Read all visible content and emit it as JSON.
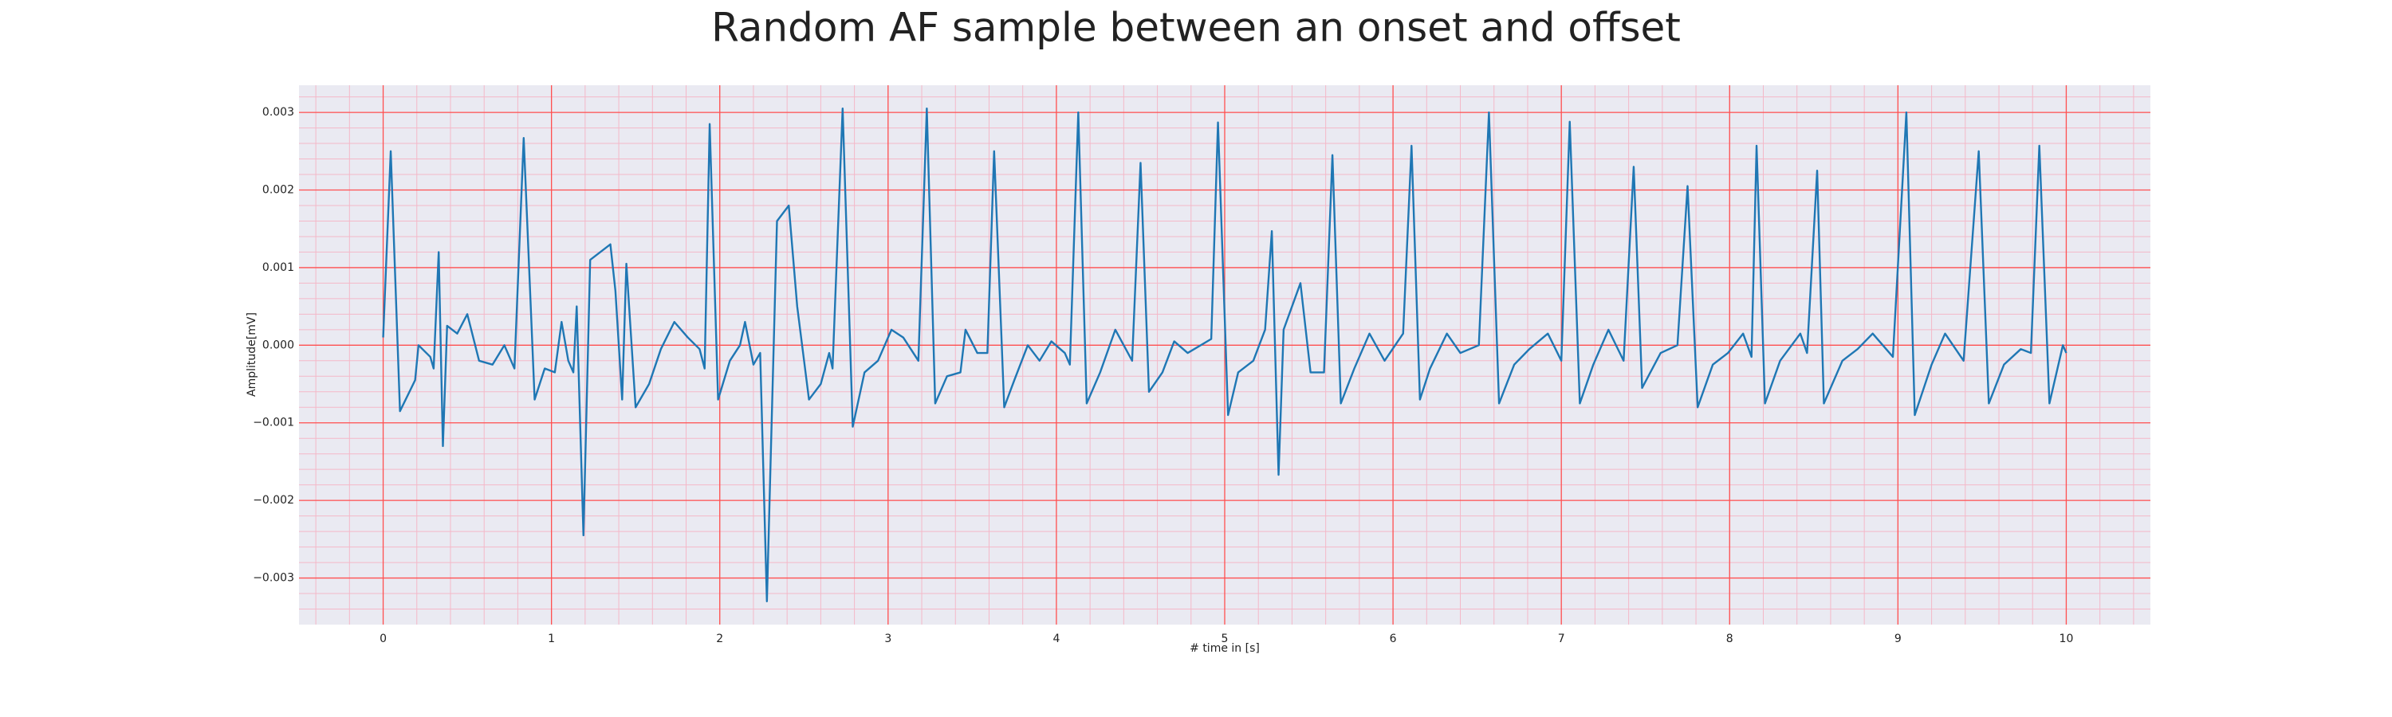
{
  "chart_data": {
    "type": "line",
    "title": "Random AF sample between an onset and offset",
    "x_label": "# time in [s]",
    "y_label": "Amplitude[mV]",
    "xlim": [
      -0.5,
      10.5
    ],
    "ylim": [
      -0.0036,
      0.00335
    ],
    "xticks": [
      0,
      1,
      2,
      3,
      4,
      5,
      6,
      7,
      8,
      9,
      10
    ],
    "yticks": [
      {
        "value": -0.003,
        "label": "−0.003"
      },
      {
        "value": -0.002,
        "label": "−0.002"
      },
      {
        "value": -0.001,
        "label": "−0.001"
      },
      {
        "value": 0,
        "label": "0.000"
      },
      {
        "value": 0.001,
        "label": "0.001"
      },
      {
        "value": 0.002,
        "label": "0.002"
      },
      {
        "value": 0.003,
        "label": "0.003"
      }
    ],
    "grid": true,
    "grid_color": "#ff5050",
    "minor_grid_per_major": 5,
    "minor_grid_color": "#f4b8c8",
    "background": "#eaeaf2",
    "series": [
      {
        "color": "#1f77b4",
        "x": [
          0,
          0.045,
          0.1,
          0.19,
          0.21,
          0.28,
          0.3,
          0.33,
          0.355,
          0.38,
          0.44,
          0.5,
          0.57,
          0.65,
          0.72,
          0.78,
          0.835,
          0.9,
          0.96,
          1.02,
          1.06,
          1.1,
          1.13,
          1.15,
          1.19,
          1.23,
          1.29,
          1.35,
          1.38,
          1.42,
          1.445,
          1.5,
          1.58,
          1.65,
          1.73,
          1.81,
          1.88,
          1.91,
          1.94,
          1.99,
          2.06,
          2.12,
          2.15,
          2.2,
          2.24,
          2.28,
          2.34,
          2.41,
          2.46,
          2.53,
          2.6,
          2.65,
          2.67,
          2.73,
          2.79,
          2.86,
          2.94,
          3.02,
          3.09,
          3.18,
          3.23,
          3.28,
          3.35,
          3.43,
          3.46,
          3.53,
          3.59,
          3.63,
          3.69,
          3.75,
          3.83,
          3.9,
          3.97,
          4.05,
          4.08,
          4.13,
          4.18,
          4.26,
          4.35,
          4.45,
          4.5,
          4.55,
          4.63,
          4.7,
          4.78,
          4.92,
          4.96,
          5.02,
          5.08,
          5.17,
          5.24,
          5.28,
          5.32,
          5.35,
          5.45,
          5.51,
          5.59,
          5.64,
          5.69,
          5.77,
          5.86,
          5.95,
          6.06,
          6.11,
          6.16,
          6.22,
          6.32,
          6.4,
          6.51,
          6.57,
          6.63,
          6.72,
          6.81,
          6.92,
          7.0,
          7.05,
          7.11,
          7.19,
          7.28,
          7.37,
          7.43,
          7.48,
          7.59,
          7.69,
          7.75,
          7.81,
          7.9,
          7.99,
          8.08,
          8.13,
          8.16,
          8.21,
          8.3,
          8.42,
          8.46,
          8.52,
          8.56,
          8.67,
          8.76,
          8.85,
          8.97,
          9.05,
          9.1,
          9.2,
          9.28,
          9.39,
          9.48,
          9.54,
          9.63,
          9.73,
          9.79,
          9.84,
          9.9,
          9.98,
          10.0
        ],
        "values": [
          0.0001,
          0.0025,
          -0.00085,
          -0.00045,
          0,
          -0.00015,
          -0.0003,
          0.0012,
          -0.0013,
          0.00025,
          0.00015,
          0.0004,
          -0.0002,
          -0.00025,
          0,
          -0.0003,
          0.00267,
          -0.0007,
          -0.0003,
          -0.00035,
          0.0003,
          -0.0002,
          -0.00035,
          0.0005,
          -0.00245,
          0.0011,
          0.0012,
          0.0013,
          0.0007,
          -0.0007,
          0.00105,
          -0.0008,
          -0.0005,
          -5e-05,
          0.0003,
          0.0001,
          -5e-05,
          -0.0003,
          0.00285,
          -0.0007,
          -0.0002,
          0,
          0.0003,
          -0.00025,
          -0.0001,
          -0.0033,
          0.0016,
          0.0018,
          0.0005,
          -0.0007,
          -0.0005,
          -0.0001,
          -0.0003,
          0.00305,
          -0.00105,
          -0.00035,
          -0.0002,
          0.0002,
          0.0001,
          -0.0002,
          0.00305,
          -0.00075,
          -0.0004,
          -0.00035,
          0.0002,
          -0.0001,
          -0.0001,
          0.0025,
          -0.0008,
          -0.00045,
          0,
          -0.0002,
          5e-05,
          -0.0001,
          -0.00025,
          0.003,
          -0.00075,
          -0.00035,
          0.0002,
          -0.0002,
          0.00235,
          -0.0006,
          -0.00035,
          5e-05,
          -0.0001,
          8e-05,
          0.00287,
          -0.0009,
          -0.00035,
          -0.0002,
          0.0002,
          0.00147,
          -0.00167,
          0.0002,
          0.0008,
          -0.00035,
          -0.00035,
          0.00245,
          -0.00075,
          -0.0003,
          0.00015,
          -0.0002,
          0.00015,
          0.00257,
          -0.0007,
          -0.0003,
          0.00015,
          -0.0001,
          0,
          0.003,
          -0.00075,
          -0.00025,
          -5e-05,
          0.00015,
          -0.0002,
          0.00288,
          -0.00075,
          -0.00025,
          0.0002,
          -0.0002,
          0.0023,
          -0.00055,
          -0.0001,
          0,
          0.00205,
          -0.0008,
          -0.00025,
          -0.0001,
          0.00015,
          -0.00015,
          0.00257,
          -0.00075,
          -0.0002,
          0.00015,
          -0.0001,
          0.00225,
          -0.00075,
          -0.0002,
          -5e-05,
          0.00015,
          -0.00015,
          0.003,
          -0.0009,
          -0.00025,
          0.00015,
          -0.0002,
          0.0025,
          -0.00075,
          -0.00025,
          -5e-05,
          -0.0001,
          0.00257,
          -0.00075,
          0,
          -0.0001
        ]
      }
    ]
  }
}
